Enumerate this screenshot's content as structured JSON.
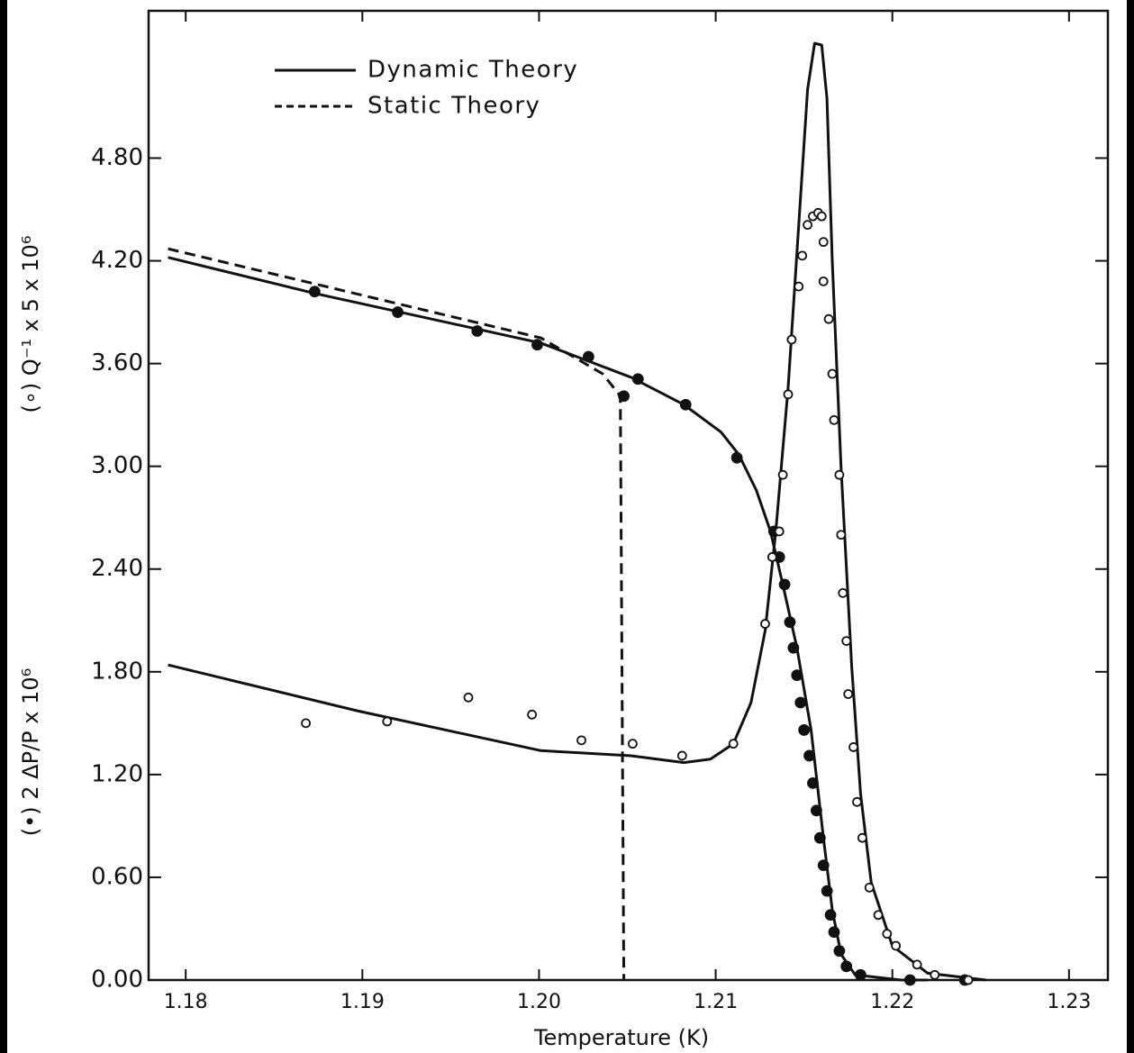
{
  "chart_data": {
    "type": "line",
    "xlabel": "Temperature (K)",
    "ylabel": [
      "(∘) Q⁻¹ x 5 x 10⁶",
      "(•) 2 ΔP/P x 10⁶"
    ],
    "xlim": [
      1.1779,
      1.2322
    ],
    "ylim": [
      0,
      5.66
    ],
    "xticks": [
      1.18,
      1.19,
      {
        "value": 1.2,
        "label": "1.20"
      },
      1.21,
      1.22,
      1.23
    ],
    "yticks": [
      {
        "value": 0,
        "label": "0.00"
      },
      {
        "value": 0.6,
        "label": "0.60"
      },
      {
        "value": 1.2,
        "label": "1.20"
      },
      {
        "value": 1.8,
        "label": "1.80"
      },
      {
        "value": 2.4,
        "label": "2.40"
      },
      {
        "value": 3,
        "label": "3.00"
      },
      {
        "value": 3.6,
        "label": "3.60"
      },
      {
        "value": 4.2,
        "label": "4.20"
      },
      {
        "value": 4.8,
        "label": "4.80"
      }
    ],
    "lines": [
      {
        "name": "Dynamic Theory",
        "style": "solid",
        "color": "#111111",
        "curves": [
          {
            "x": [
              1.179,
              1.1873,
              1.2001,
              1.2052,
              1.2082,
              1.2103,
              1.2113,
              1.2123,
              1.2131,
              1.2138,
              1.2146,
              1.2154,
              1.2161,
              1.2166,
              1.2171,
              1.2179,
              1.2205,
              1.222
            ],
            "values": [
              4.22,
              4.01,
              3.72,
              3.52,
              3.36,
              3.2,
              3.07,
              2.86,
              2.62,
              2.31,
              1.94,
              1.46,
              0.83,
              0.41,
              0.15,
              0.03,
              0,
              0
            ]
          },
          {
            "x": [
              1.179,
              1.1898,
              1.2001,
              1.2052,
              1.2082,
              1.2097,
              1.211,
              1.212,
              1.2128,
              1.2134,
              1.2141,
              1.2147,
              1.2152,
              1.2156,
              1.216,
              1.2163,
              1.2166,
              1.2171,
              1.2177,
              1.2182,
              1.2188,
              1.22,
              1.222,
              1.2253
            ],
            "values": [
              1.84,
              1.57,
              1.34,
              1.31,
              1.27,
              1.29,
              1.38,
              1.62,
              2.04,
              2.62,
              3.46,
              4.41,
              5.2,
              5.47,
              5.46,
              5.15,
              4.2,
              2.99,
              1.83,
              1.09,
              0.57,
              0.2,
              0.04,
              0
            ]
          }
        ]
      },
      {
        "name": "Static Theory",
        "style": "dashed",
        "color": "#111111",
        "curves": [
          {
            "x": [
              1.179,
              1.2001,
              1.2036,
              1.2046,
              1.2048
            ],
            "values": [
              4.27,
              3.75,
              3.54,
              3.41,
              0
            ]
          }
        ]
      }
    ],
    "points": [
      {
        "marker": "filled",
        "color": "#111111",
        "x": [
          1.1873,
          1.192,
          1.1965,
          1.1999,
          1.2028,
          1.2056,
          1.2083,
          1.2112,
          1.2048,
          1.2133,
          1.2136,
          1.2139,
          1.2142,
          1.2144,
          1.2146,
          1.2148,
          1.215,
          1.2153,
          1.2155,
          1.2157,
          1.2159,
          1.2161,
          1.2163,
          1.2165,
          1.2167,
          1.217,
          1.2174,
          1.2182,
          1.221,
          1.2241
        ],
        "values": [
          4.02,
          3.9,
          3.79,
          3.71,
          3.64,
          3.51,
          3.36,
          3.05,
          3.41,
          2.62,
          2.47,
          2.31,
          2.09,
          1.94,
          1.78,
          1.62,
          1.46,
          1.31,
          1.15,
          0.99,
          0.83,
          0.67,
          0.52,
          0.38,
          0.28,
          0.17,
          0.08,
          0.03,
          0,
          0
        ]
      },
      {
        "marker": "open",
        "color": "#111111",
        "x": [
          1.1868,
          1.1914,
          1.196,
          1.1996,
          1.2024,
          1.2053,
          1.2081,
          1.211,
          1.2128,
          1.2132,
          1.2136,
          1.2138,
          1.2141,
          1.2143,
          1.2147,
          1.2149,
          1.2152,
          1.2155,
          1.2158,
          1.216,
          1.2161,
          1.2161,
          1.2164,
          1.2166,
          1.2167,
          1.217,
          1.2171,
          1.2172,
          1.2174,
          1.2175,
          1.2178,
          1.218,
          1.2183,
          1.2187,
          1.2192,
          1.2197,
          1.2202,
          1.2214,
          1.2224,
          1.2243
        ],
        "values": [
          1.5,
          1.51,
          1.65,
          1.55,
          1.4,
          1.38,
          1.31,
          1.38,
          2.08,
          2.47,
          2.62,
          2.95,
          3.42,
          3.74,
          4.05,
          4.23,
          4.41,
          4.46,
          4.48,
          4.46,
          4.31,
          4.08,
          3.86,
          3.54,
          3.27,
          2.95,
          2.6,
          2.26,
          1.98,
          1.67,
          1.36,
          1.04,
          0.83,
          0.54,
          0.38,
          0.27,
          0.2,
          0.09,
          0.03,
          0
        ]
      }
    ]
  }
}
